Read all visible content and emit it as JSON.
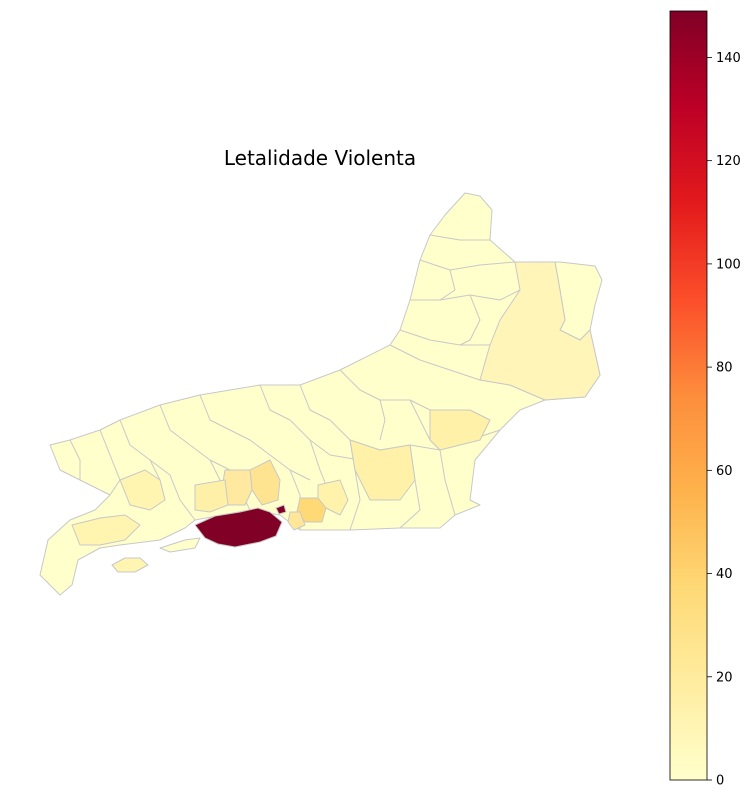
{
  "title": "Letalidade Violenta",
  "colorbar": {
    "min": 0,
    "max": 149,
    "ticks": [
      "0",
      "20",
      "40",
      "60",
      "80",
      "100",
      "120",
      "140"
    ],
    "tick_values": [
      0,
      20,
      40,
      60,
      80,
      100,
      120,
      140
    ],
    "colormap": "YlOrRd",
    "colors": [
      "#ffffcc",
      "#ffeda0",
      "#fed976",
      "#feb24c",
      "#fd8d3c",
      "#fc4e2a",
      "#e31a1c",
      "#bd0026",
      "#800026"
    ]
  },
  "region_outline_color": "#c8c8c8",
  "regions_summary": {
    "highest_value_region_color": "#800026"
  }
}
